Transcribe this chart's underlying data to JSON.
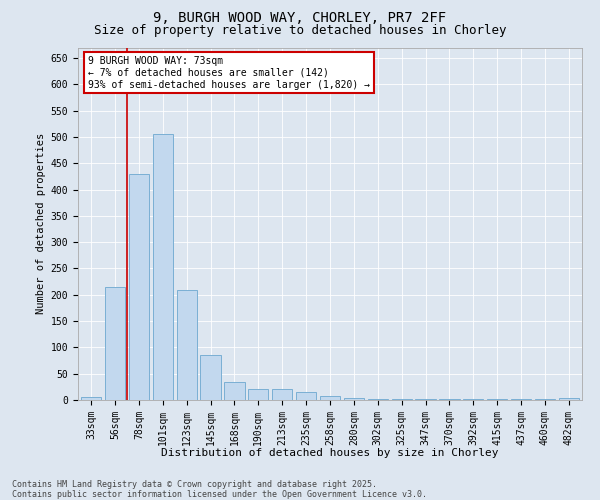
{
  "title_line1": "9, BURGH WOOD WAY, CHORLEY, PR7 2FF",
  "title_line2": "Size of property relative to detached houses in Chorley",
  "xlabel": "Distribution of detached houses by size in Chorley",
  "ylabel": "Number of detached properties",
  "categories": [
    "33sqm",
    "56sqm",
    "78sqm",
    "101sqm",
    "123sqm",
    "145sqm",
    "168sqm",
    "190sqm",
    "213sqm",
    "235sqm",
    "258sqm",
    "280sqm",
    "302sqm",
    "325sqm",
    "347sqm",
    "370sqm",
    "392sqm",
    "415sqm",
    "437sqm",
    "460sqm",
    "482sqm"
  ],
  "values": [
    5,
    215,
    430,
    505,
    210,
    85,
    35,
    20,
    20,
    15,
    7,
    3,
    2,
    1,
    1,
    1,
    1,
    1,
    1,
    1,
    3
  ],
  "bar_color": "#c2d8ee",
  "bar_edge_color": "#7aafd4",
  "marker_line_color": "#cc0000",
  "annotation_text": "9 BURGH WOOD WAY: 73sqm\n← 7% of detached houses are smaller (142)\n93% of semi-detached houses are larger (1,820) →",
  "annotation_box_facecolor": "#ffffff",
  "annotation_box_edgecolor": "#cc0000",
  "ylim": [
    0,
    670
  ],
  "yticks": [
    0,
    50,
    100,
    150,
    200,
    250,
    300,
    350,
    400,
    450,
    500,
    550,
    600,
    650
  ],
  "bg_color": "#dde6f0",
  "grid_color": "#ffffff",
  "footer_text": "Contains HM Land Registry data © Crown copyright and database right 2025.\nContains public sector information licensed under the Open Government Licence v3.0.",
  "title1_fontsize": 10,
  "title2_fontsize": 9,
  "xlabel_fontsize": 8,
  "ylabel_fontsize": 7.5,
  "tick_fontsize": 7,
  "annotation_fontsize": 7,
  "footer_fontsize": 6
}
